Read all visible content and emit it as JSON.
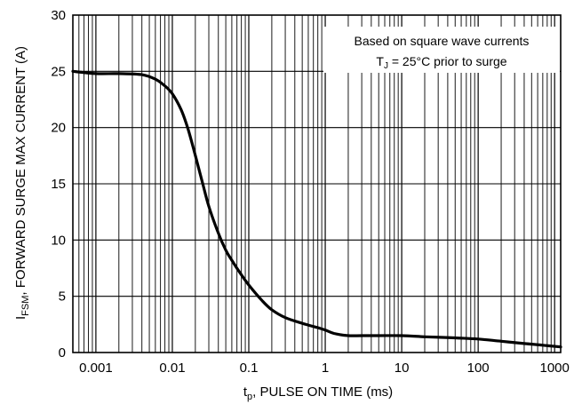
{
  "chart_data": {
    "type": "line",
    "x_scale": "log",
    "xlim": [
      0.0005,
      1200
    ],
    "ylim": [
      0,
      30
    ],
    "grid": true,
    "x_ticks": [
      "0.001",
      "0.01",
      "0.1",
      "1",
      "10",
      "100",
      "1000"
    ],
    "y_ticks": [
      "0",
      "5",
      "10",
      "15",
      "20",
      "25",
      "30"
    ],
    "xlabel": {
      "main": "t",
      "sub": "p",
      "rest": ", PULSE ON TIME (ms)"
    },
    "ylabel": {
      "main": "I",
      "sub": "FSM",
      "rest": ", FORWARD SURGE MAX CURRENT (A)"
    },
    "annotation": {
      "line1": "Based on square wave currents",
      "line2_main": "T",
      "line2_sub": "J",
      "line2_rest": " = 25°C prior to surge"
    },
    "series": [
      {
        "x": [
          0.0005,
          0.001,
          0.002,
          0.004,
          0.006,
          0.008,
          0.01,
          0.013,
          0.016,
          0.02,
          0.025,
          0.03,
          0.04,
          0.05,
          0.06,
          0.08,
          0.1,
          0.15,
          0.2,
          0.3,
          0.5,
          0.8,
          1.0,
          1.3,
          2,
          3,
          5,
          10,
          20,
          50,
          100,
          200,
          400,
          700,
          1200
        ],
        "y": [
          25.0,
          24.8,
          24.8,
          24.7,
          24.3,
          23.7,
          23.0,
          21.6,
          19.9,
          17.5,
          15.0,
          13.0,
          10.6,
          9.1,
          8.2,
          6.9,
          6.0,
          4.6,
          3.8,
          3.1,
          2.6,
          2.2,
          2.0,
          1.7,
          1.5,
          1.5,
          1.5,
          1.5,
          1.4,
          1.3,
          1.2,
          1.0,
          0.8,
          0.65,
          0.5
        ],
        "color": "#000000"
      }
    ]
  }
}
